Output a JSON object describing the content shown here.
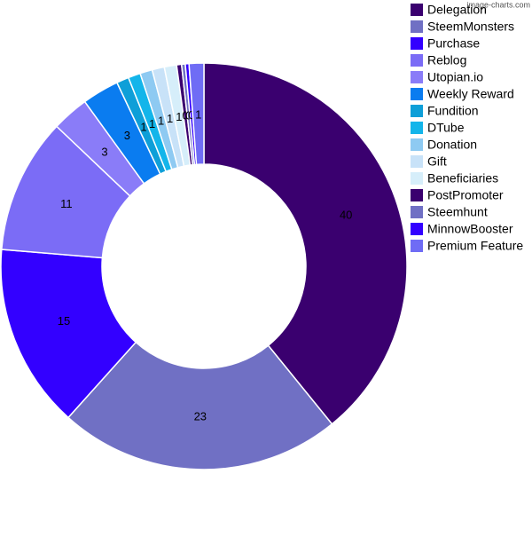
{
  "chart_data": {
    "type": "donut",
    "watermark": "image-charts.com",
    "categories": [
      "Delegation",
      "SteemMonsters",
      "Purchase",
      "Reblog",
      "Utopian.io",
      "Weekly Reward",
      "Fundition",
      "DTube",
      "Donation",
      "Gift",
      "Beneficiaries",
      "PostPromoter",
      "Steemhunt",
      "MinnowBooster",
      "Premium Feature"
    ],
    "values": [
      40,
      23,
      15,
      11,
      3,
      3,
      1,
      1,
      1,
      1,
      1,
      0.4,
      0.3,
      0.3,
      1.2
    ],
    "value_labels": [
      "40",
      "23",
      "15",
      "11",
      "3",
      "3",
      "1",
      "1",
      "1",
      "1",
      "1",
      "0",
      "0",
      "0",
      "1"
    ],
    "colors": [
      "#3a006f",
      "#7070c4",
      "#3300ff",
      "#7b6cf6",
      "#8a7cf8",
      "#0a7cf0",
      "#0e9fd8",
      "#13b5ea",
      "#8ecaf2",
      "#c8e2f8",
      "#d6eefa",
      "#3a006f",
      "#7070c4",
      "#3300ff",
      "#6f6cf5"
    ],
    "legend": "right"
  }
}
